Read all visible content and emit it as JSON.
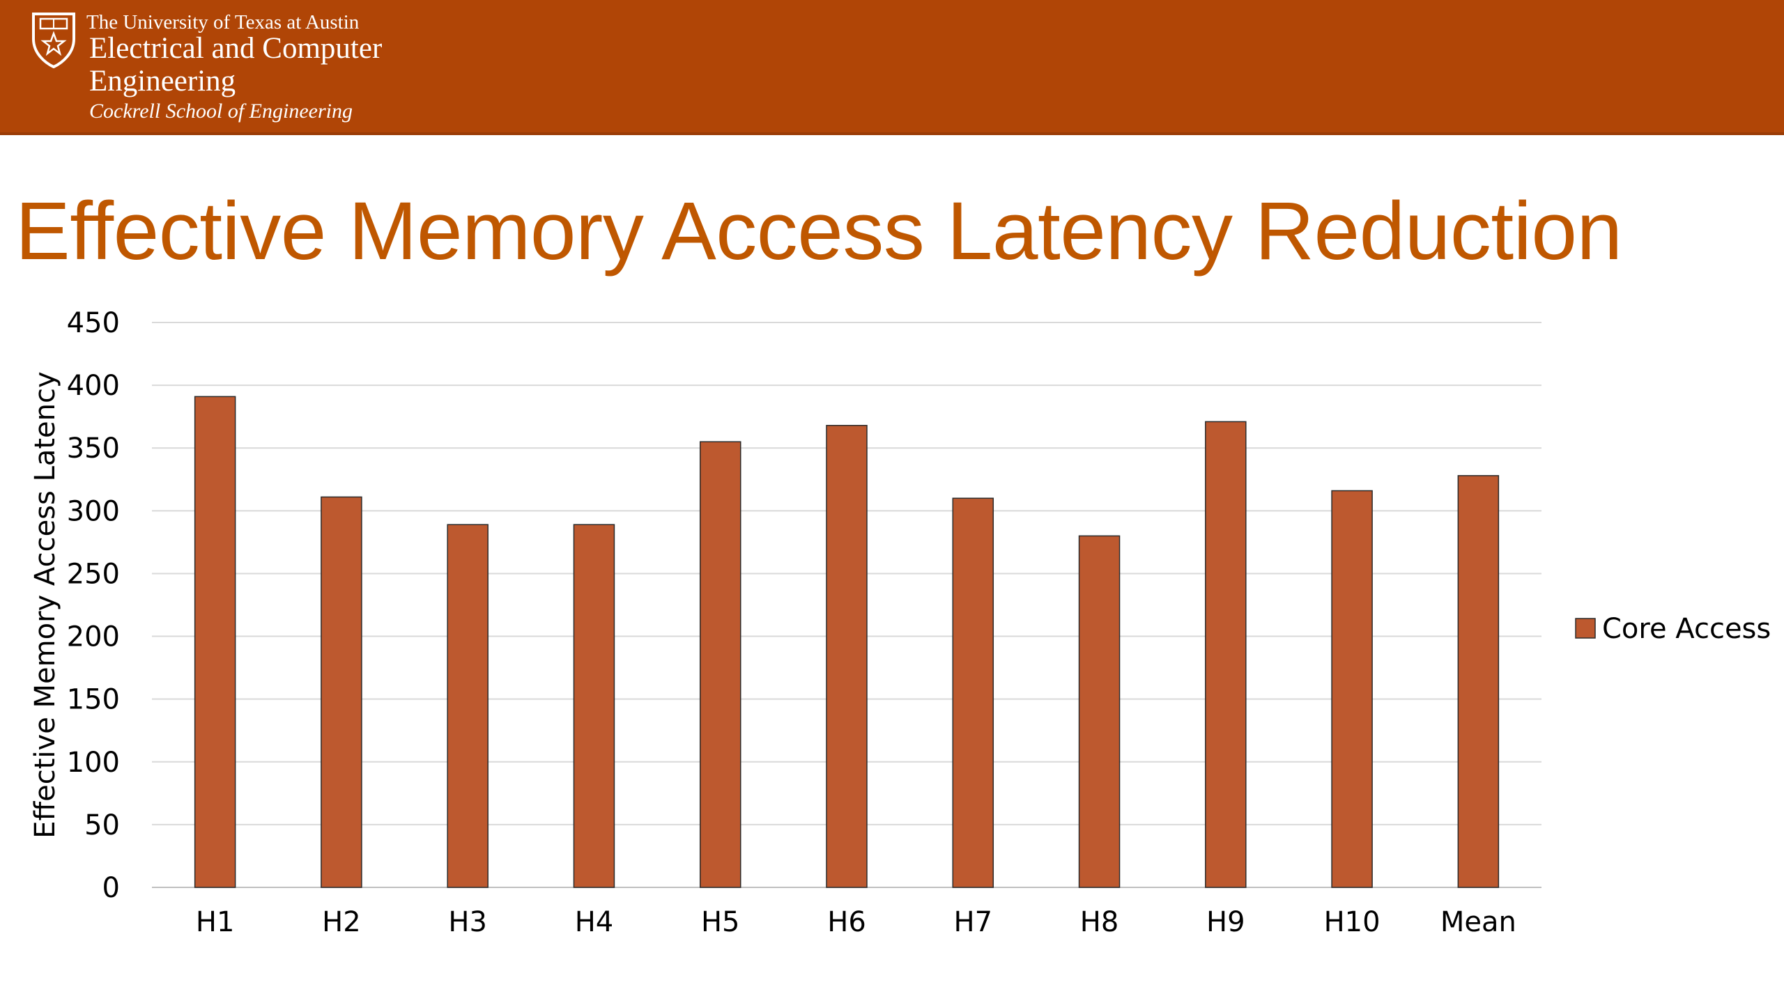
{
  "header": {
    "university": "The University of Texas at Austin",
    "department": "Electrical and Computer Engineering",
    "school": "Cockrell School of Engineering",
    "logo_icon": "ut-shield-icon",
    "background_color": "#b04506",
    "text_color": "#ffffff"
  },
  "slide": {
    "title": "Effective Memory Access Latency Reduction",
    "title_color": "#bf5700"
  },
  "chart_data": {
    "type": "bar",
    "title": "",
    "xlabel": "",
    "ylabel": "Effective Memory Access Latency",
    "ylim": [
      0,
      450
    ],
    "yticks": [
      0,
      50,
      100,
      150,
      200,
      250,
      300,
      350,
      400,
      450
    ],
    "grid": true,
    "legend_position": "right",
    "categories": [
      "H1",
      "H2",
      "H3",
      "H4",
      "H5",
      "H6",
      "H7",
      "H8",
      "H9",
      "H10",
      "Mean"
    ],
    "series": [
      {
        "name": "Core Access",
        "color": "#bd592f",
        "values": [
          391,
          311,
          289,
          289,
          355,
          368,
          310,
          280,
          371,
          316,
          328
        ]
      }
    ]
  }
}
